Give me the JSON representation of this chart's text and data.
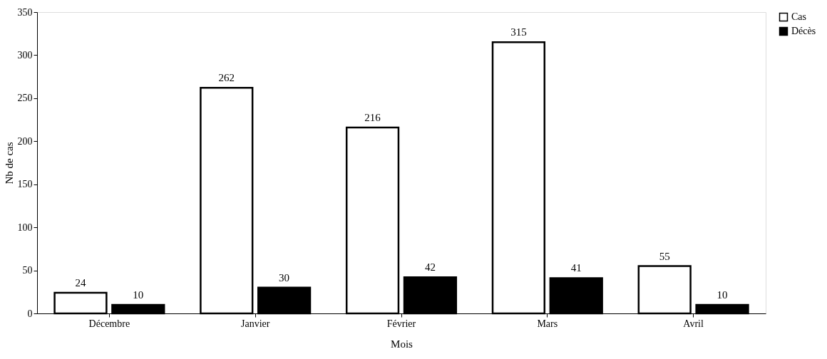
{
  "chart_data": {
    "type": "bar",
    "xlabel": "Mois",
    "ylabel": "Nb de cas",
    "categories": [
      "Décembre",
      "Janvier",
      "Février",
      "Mars",
      "Avril"
    ],
    "series": [
      {
        "name": "Cas",
        "color": "#ffffff",
        "values": [
          24,
          262,
          216,
          315,
          55
        ]
      },
      {
        "name": "Décès",
        "color": "#000000",
        "values": [
          10,
          30,
          42,
          41,
          10
        ]
      }
    ],
    "ylim": [
      0,
      350
    ],
    "yticks": [
      0,
      50,
      100,
      150,
      200,
      250,
      300,
      350
    ],
    "grid": false,
    "legend": "right",
    "data_labels": true
  }
}
